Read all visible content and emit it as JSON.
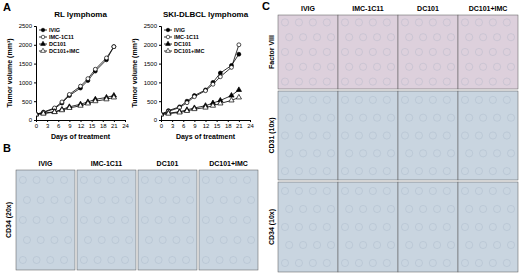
{
  "panel_labels": [
    "A",
    "B",
    "C"
  ],
  "chart_data": [
    {
      "type": "line",
      "title": "RL lymphoma",
      "x_label": "Days of treatment",
      "y_label": "Tumor volume (mm³)",
      "x": [
        0,
        2,
        5,
        7,
        9,
        12,
        14,
        16,
        19,
        21
      ],
      "series": [
        {
          "name": "IVIG",
          "color": "#000000",
          "marker": "circle",
          "values": [
            150,
            200,
            300,
            450,
            650,
            850,
            1050,
            1300,
            1600,
            1950
          ]
        },
        {
          "name": "IMC-1C11",
          "color": "#000000",
          "marker": "circle-open",
          "values": [
            150,
            210,
            320,
            480,
            680,
            900,
            1100,
            1350,
            1650,
            1950
          ]
        },
        {
          "name": "DC101",
          "color": "#000000",
          "marker": "triangle",
          "values": [
            150,
            180,
            220,
            280,
            350,
            420,
            480,
            550,
            600,
            650
          ]
        },
        {
          "name": "DC101+IMC",
          "color": "#000000",
          "marker": "triangle-open",
          "values": [
            150,
            170,
            210,
            260,
            320,
            380,
            440,
            500,
            550,
            600
          ]
        }
      ],
      "xlim": [
        0,
        24
      ],
      "xticks": [
        0,
        3,
        6,
        9,
        12,
        15,
        18,
        21,
        24
      ],
      "ylim": [
        0,
        2500
      ],
      "yticks": [
        0,
        500,
        1000,
        1500,
        2000,
        2500
      ],
      "legend": "upper left"
    },
    {
      "type": "line",
      "title": "SKI-DLBCL lymphoma",
      "x_label": "Days of treatment",
      "y_label": "Tumor volume (mm³)",
      "x": [
        0,
        2,
        5,
        7,
        9,
        12,
        14,
        16,
        19,
        21
      ],
      "series": [
        {
          "name": "IVIG",
          "color": "#000000",
          "marker": "circle",
          "values": [
            150,
            250,
            350,
            500,
            650,
            800,
            1000,
            1250,
            1450,
            1750
          ]
        },
        {
          "name": "IMC-1C11",
          "color": "#000000",
          "marker": "circle-open",
          "values": [
            150,
            230,
            330,
            460,
            620,
            780,
            950,
            1150,
            1400,
            2000
          ]
        },
        {
          "name": "DC101",
          "color": "#000000",
          "marker": "triangle",
          "values": [
            150,
            180,
            220,
            270,
            320,
            380,
            450,
            520,
            650,
            800
          ]
        },
        {
          "name": "DC101+IMC",
          "color": "#000000",
          "marker": "triangle-open",
          "values": [
            150,
            170,
            200,
            240,
            290,
            330,
            380,
            440,
            520,
            600
          ]
        }
      ],
      "xlim": [
        0,
        24
      ],
      "xticks": [
        0,
        3,
        6,
        9,
        12,
        15,
        18,
        21,
        24
      ],
      "ylim": [
        0,
        2500
      ],
      "yticks": [
        0,
        500,
        1000,
        1500,
        2000,
        2500
      ],
      "legend": "upper left"
    }
  ],
  "images": {
    "B": {
      "columns": [
        "IVIG",
        "IMC-1C11",
        "DC101",
        "DC101+IMC"
      ],
      "rows": [
        "CD34 (20x)"
      ]
    },
    "C": {
      "columns": [
        "IVIG",
        "IMC-1C11",
        "DC101",
        "DC101+IMC"
      ],
      "rows": [
        "Factor VIII",
        "CD31 (10x)",
        "CD34 (10x)"
      ]
    }
  }
}
